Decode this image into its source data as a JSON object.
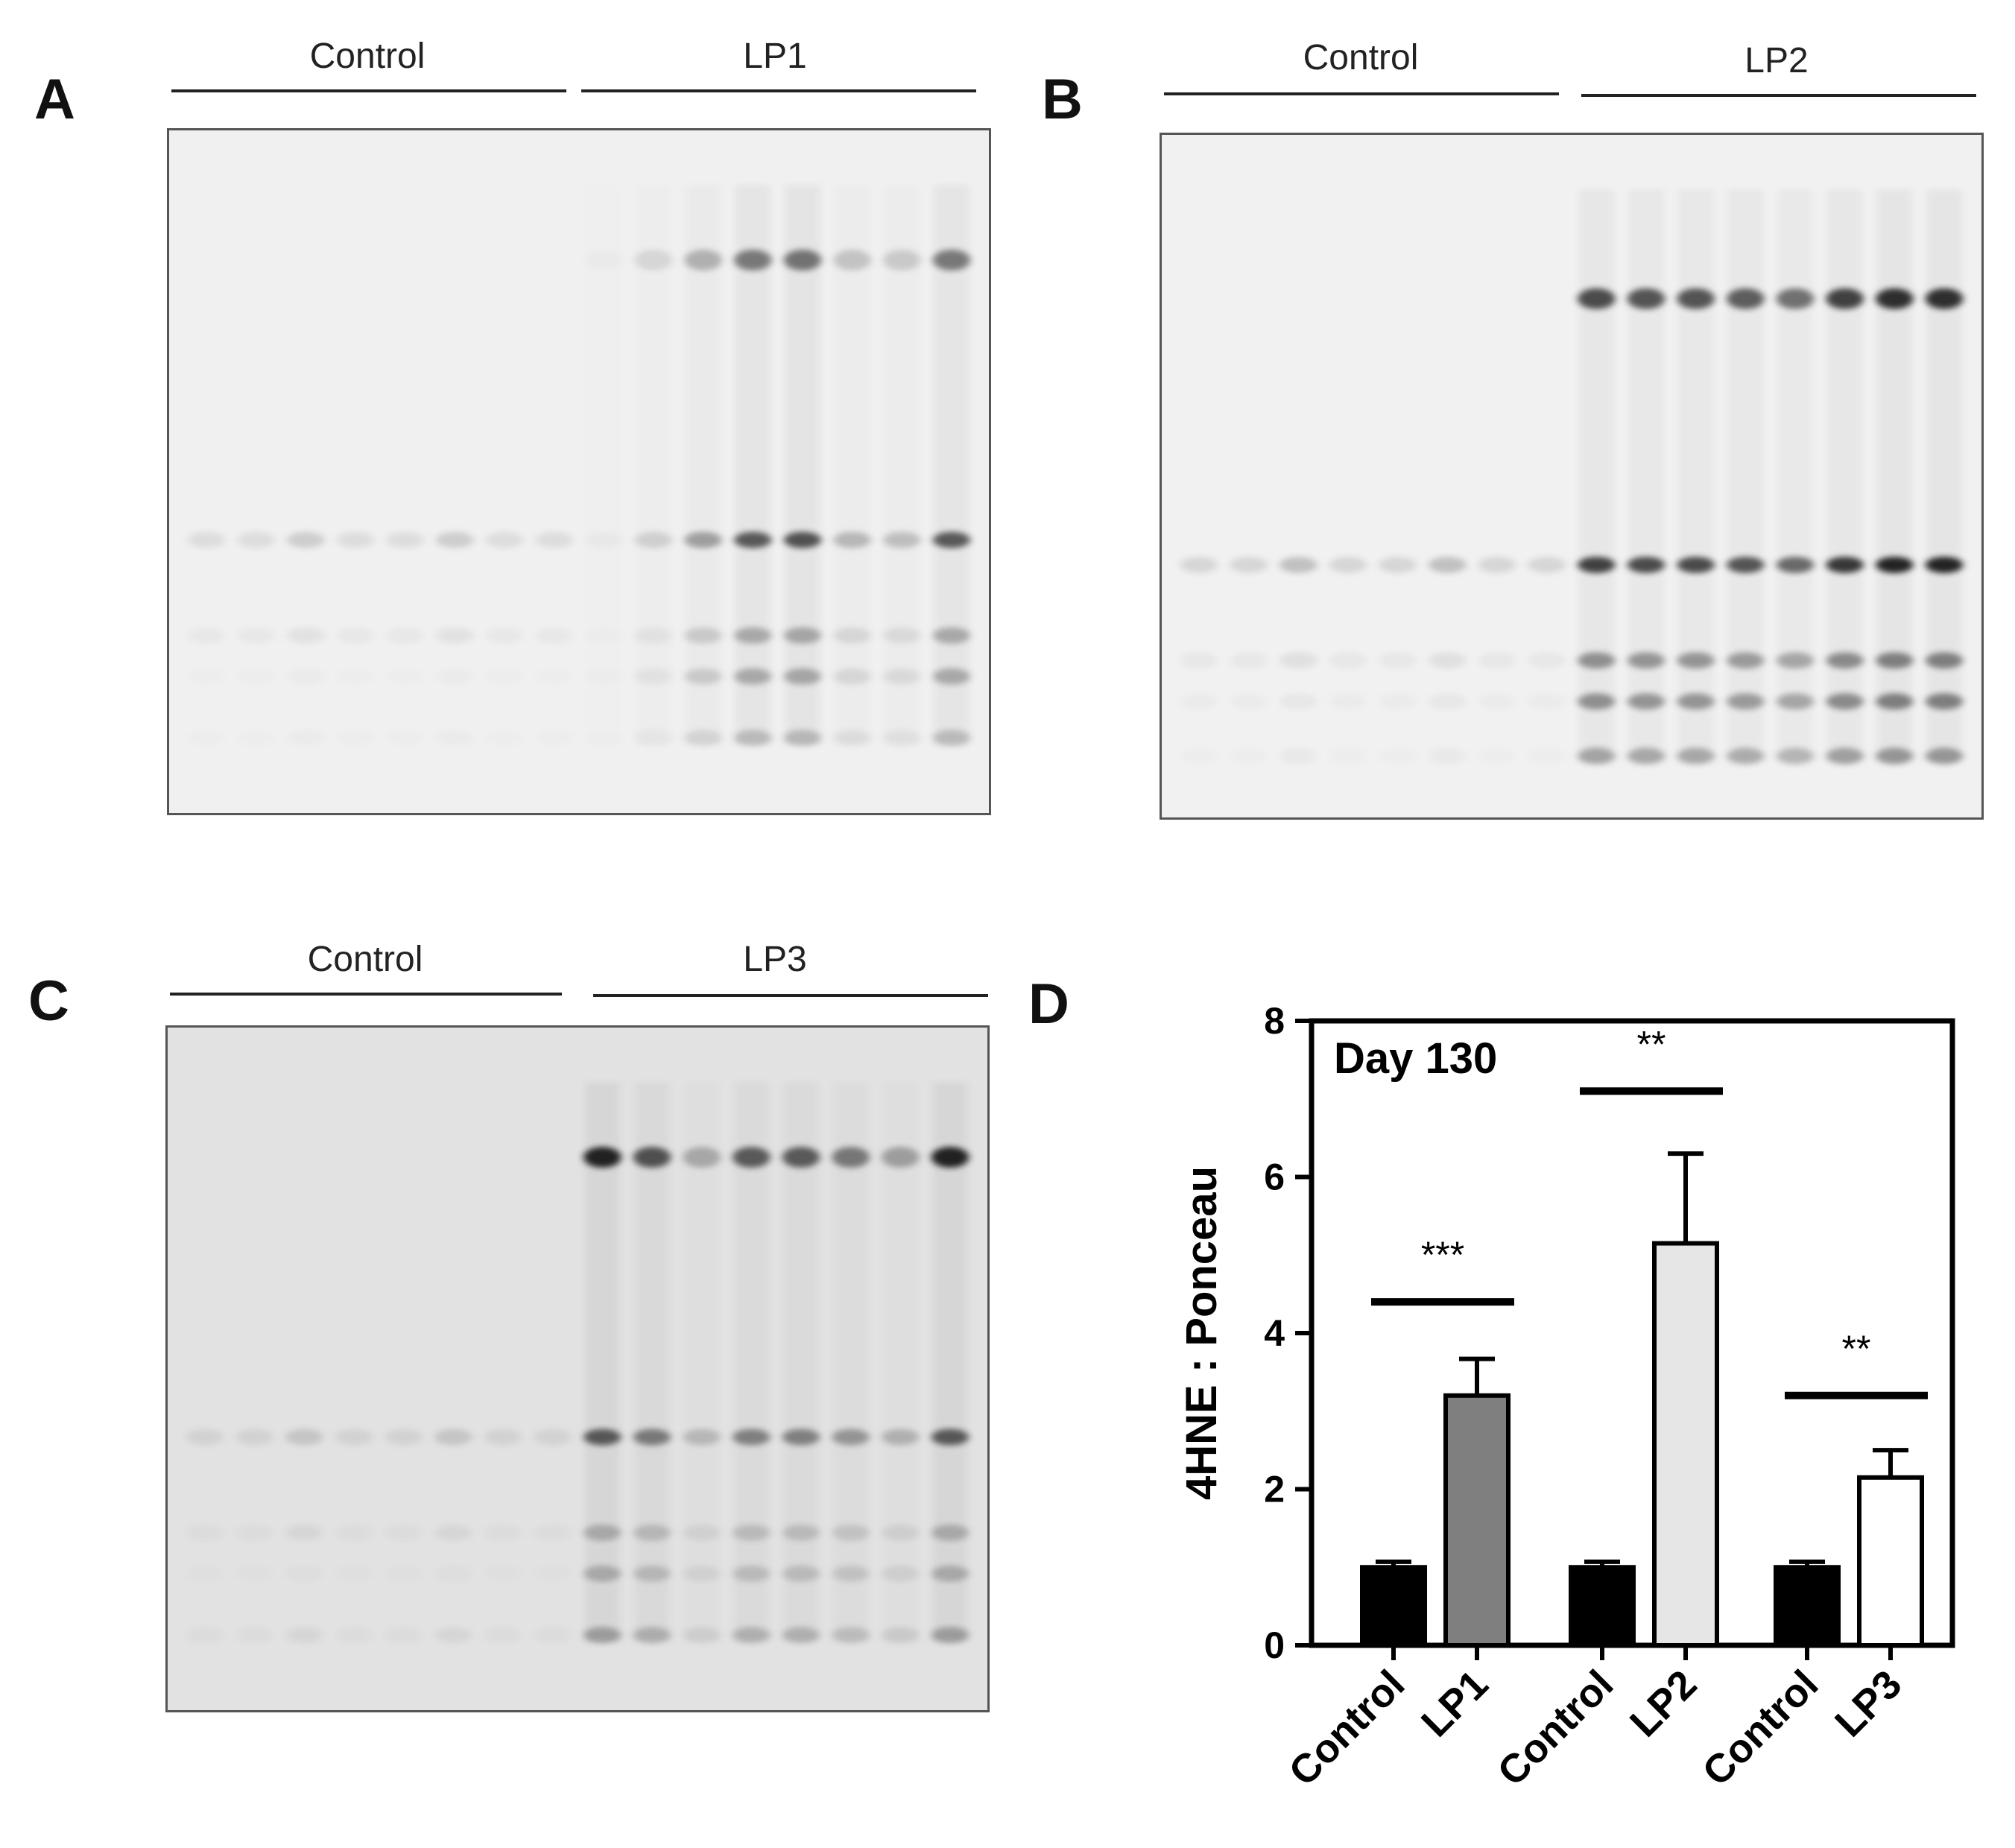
{
  "panels": {
    "a": {
      "letter": "A",
      "groups": [
        "Control",
        "LP1"
      ],
      "blot": {
        "background": "#f0f0f0",
        "control_lanes": 8,
        "treated_lanes": 8,
        "band_rows": [
          0.19,
          0.6,
          0.74,
          0.8,
          0.89
        ],
        "control_band_intensity": [
          0.0,
          0.14,
          0.06,
          0.02,
          0.02
        ],
        "treated_band_intensity": [
          0.5,
          0.65,
          0.28,
          0.28,
          0.2
        ],
        "treated_lane_pattern": [
          0.05,
          0.2,
          0.5,
          0.95,
          1.0,
          0.35,
          0.3,
          0.95
        ]
      }
    },
    "b": {
      "letter": "B",
      "groups": [
        "Control",
        "LP2"
      ],
      "blot": {
        "background": "#f1f1f1",
        "control_lanes": 8,
        "treated_lanes": 8,
        "band_rows": [
          0.24,
          0.63,
          0.77,
          0.83,
          0.91
        ],
        "control_band_intensity": [
          0.0,
          0.2,
          0.07,
          0.04,
          0.03
        ],
        "treated_band_intensity": [
          0.8,
          0.85,
          0.45,
          0.45,
          0.38
        ],
        "treated_lane_pattern": [
          0.85,
          0.8,
          0.8,
          0.75,
          0.65,
          0.9,
          1.0,
          1.0
        ]
      }
    },
    "c": {
      "letter": "C",
      "groups": [
        "Control",
        "LP3"
      ],
      "blot": {
        "background": "#e2e2e2",
        "control_lanes": 8,
        "treated_lanes": 8,
        "band_rows": [
          0.19,
          0.6,
          0.74,
          0.8,
          0.89
        ],
        "control_band_intensity": [
          0.0,
          0.13,
          0.05,
          0.02,
          0.05
        ],
        "treated_band_intensity": [
          0.85,
          0.6,
          0.22,
          0.22,
          0.28
        ],
        "treated_lane_pattern": [
          1.0,
          0.75,
          0.3,
          0.7,
          0.7,
          0.55,
          0.35,
          1.0
        ]
      }
    },
    "d": {
      "letter": "D"
    }
  },
  "chart_data": {
    "type": "bar",
    "annotation": "Day 130",
    "ylabel": "4HNE : Ponceau",
    "xlabel": "",
    "ylim": [
      0,
      8
    ],
    "yticks": [
      0,
      2,
      4,
      6,
      8
    ],
    "categories": [
      "Control",
      "LP1",
      "Control",
      "LP2",
      "Control",
      "LP3"
    ],
    "values": [
      1.0,
      3.2,
      1.0,
      5.15,
      1.0,
      2.15
    ],
    "errors": [
      0.07,
      0.47,
      0.07,
      1.15,
      0.07,
      0.35
    ],
    "fill_colors": [
      "#000000",
      "#7f7f7f",
      "#000000",
      "#e6e6e6",
      "#000000",
      "#ffffff"
    ],
    "significance": [
      {
        "pair": [
          0,
          1
        ],
        "label": "***",
        "bar_y": 4.4
      },
      {
        "pair": [
          2,
          3
        ],
        "label": "**",
        "bar_y": 7.1
      },
      {
        "pair": [
          4,
          5
        ],
        "label": "**",
        "bar_y": 3.2
      }
    ]
  }
}
